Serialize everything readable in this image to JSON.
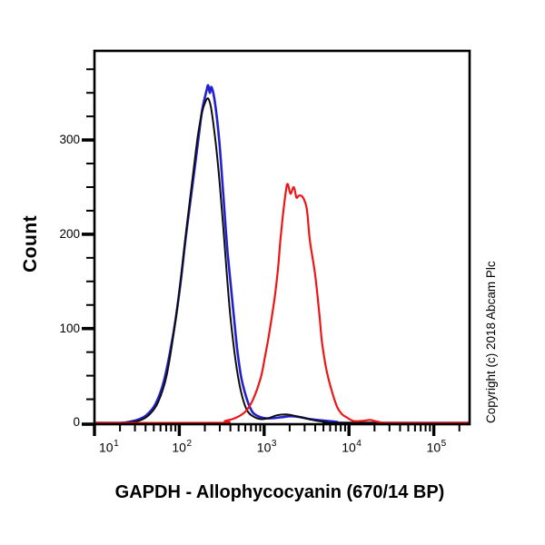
{
  "figure": {
    "y_axis_title": "Count",
    "x_axis_title": "GAPDH - Allophycocyanin (670/14 BP)",
    "copyright": "Copyright (c) 2018 Abcam Plc"
  },
  "chart_data": {
    "type": "line",
    "subtype": "flow-cytometry-histogram-overlay",
    "title": "",
    "xlabel": "GAPDH - Allophycocyanin (670/14 BP)",
    "ylabel": "Count",
    "legend": "none",
    "grid": false,
    "x_axis": {
      "scale": "log10",
      "range_log10": [
        1.0,
        5.42
      ],
      "major_ticks": [
        {
          "base": "10",
          "exp": "1",
          "log": 1
        },
        {
          "base": "10",
          "exp": "2",
          "log": 2
        },
        {
          "base": "10",
          "exp": "3",
          "log": 3
        },
        {
          "base": "10",
          "exp": "4",
          "log": 4
        },
        {
          "base": "10",
          "exp": "5",
          "log": 5
        }
      ],
      "minor_multiples": [
        2,
        3,
        4,
        5,
        6,
        7,
        8,
        9
      ]
    },
    "y_axis": {
      "range": [
        0,
        394
      ],
      "major_ticks": [
        0,
        100,
        200,
        300
      ],
      "minor_tick_step": 25,
      "minor_tick_max": 375
    },
    "colors": {
      "blue_curve": "#2121cf",
      "black_curve": "#0d0d0d",
      "red_curve": "#ed1515",
      "frame": "#000000"
    },
    "series": [
      {
        "name": "blue-curve",
        "color_key": "blue_curve",
        "stroke_width": 2.6,
        "points_log10x_count": [
          [
            0.82,
            0
          ],
          [
            1.29,
            0
          ],
          [
            1.4,
            1
          ],
          [
            1.5,
            3
          ],
          [
            1.61,
            8
          ],
          [
            1.72,
            20
          ],
          [
            1.82,
            45
          ],
          [
            1.93,
            95
          ],
          [
            2.01,
            145
          ],
          [
            2.08,
            200
          ],
          [
            2.16,
            255
          ],
          [
            2.23,
            305
          ],
          [
            2.27,
            332
          ],
          [
            2.32,
            352
          ],
          [
            2.34,
            358
          ],
          [
            2.36,
            350
          ],
          [
            2.38,
            356
          ],
          [
            2.42,
            340
          ],
          [
            2.47,
            300
          ],
          [
            2.52,
            240
          ],
          [
            2.57,
            180
          ],
          [
            2.63,
            125
          ],
          [
            2.68,
            80
          ],
          [
            2.73,
            48
          ],
          [
            2.79,
            27
          ],
          [
            2.84,
            15
          ],
          [
            2.89,
            9
          ],
          [
            3.0,
            5
          ],
          [
            3.11,
            5
          ],
          [
            3.21,
            6
          ],
          [
            3.32,
            7
          ],
          [
            3.43,
            6
          ],
          [
            3.53,
            4
          ],
          [
            3.64,
            3
          ],
          [
            3.75,
            2
          ],
          [
            3.86,
            1
          ],
          [
            3.96,
            0
          ],
          [
            5.42,
            0
          ]
        ]
      },
      {
        "name": "black-curve",
        "color_key": "black_curve",
        "stroke_width": 2.0,
        "points_log10x_count": [
          [
            0.82,
            0
          ],
          [
            1.32,
            0
          ],
          [
            1.45,
            1
          ],
          [
            1.55,
            3
          ],
          [
            1.65,
            9
          ],
          [
            1.75,
            22
          ],
          [
            1.85,
            50
          ],
          [
            1.95,
            105
          ],
          [
            2.02,
            155
          ],
          [
            2.09,
            210
          ],
          [
            2.16,
            262
          ],
          [
            2.22,
            305
          ],
          [
            2.27,
            330
          ],
          [
            2.31,
            341
          ],
          [
            2.34,
            344
          ],
          [
            2.37,
            336
          ],
          [
            2.4,
            318
          ],
          [
            2.44,
            288
          ],
          [
            2.48,
            250
          ],
          [
            2.52,
            205
          ],
          [
            2.56,
            158
          ],
          [
            2.6,
            115
          ],
          [
            2.65,
            75
          ],
          [
            2.7,
            45
          ],
          [
            2.75,
            25
          ],
          [
            2.8,
            13
          ],
          [
            2.85,
            8
          ],
          [
            2.95,
            4
          ],
          [
            3.05,
            5
          ],
          [
            3.15,
            8
          ],
          [
            3.25,
            9
          ],
          [
            3.33,
            8
          ],
          [
            3.43,
            6
          ],
          [
            3.53,
            4
          ],
          [
            3.63,
            2
          ],
          [
            3.73,
            1
          ],
          [
            3.85,
            0
          ],
          [
            5.42,
            0
          ]
        ]
      },
      {
        "name": "red-curve",
        "color_key": "red_curve",
        "stroke_width": 2.2,
        "points_log10x_count": [
          [
            0.82,
            0
          ],
          [
            2.45,
            0
          ],
          [
            2.54,
            2
          ],
          [
            2.66,
            5
          ],
          [
            2.78,
            12
          ],
          [
            2.87,
            25
          ],
          [
            2.96,
            48
          ],
          [
            3.01,
            70
          ],
          [
            3.06,
            95
          ],
          [
            3.12,
            130
          ],
          [
            3.15,
            152
          ],
          [
            3.17,
            170
          ],
          [
            3.19,
            192
          ],
          [
            3.22,
            219
          ],
          [
            3.26,
            248
          ],
          [
            3.28,
            253
          ],
          [
            3.31,
            243
          ],
          [
            3.35,
            250
          ],
          [
            3.38,
            239
          ],
          [
            3.41,
            241
          ],
          [
            3.45,
            240
          ],
          [
            3.49,
            232
          ],
          [
            3.51,
            222
          ],
          [
            3.54,
            193
          ],
          [
            3.6,
            158
          ],
          [
            3.65,
            116
          ],
          [
            3.68,
            87
          ],
          [
            3.73,
            58
          ],
          [
            3.79,
            36
          ],
          [
            3.86,
            17
          ],
          [
            3.92,
            9
          ],
          [
            3.97,
            6
          ],
          [
            4.05,
            2
          ],
          [
            4.15,
            2
          ],
          [
            4.25,
            3
          ],
          [
            4.35,
            1
          ],
          [
            4.5,
            0
          ],
          [
            5.42,
            0
          ]
        ]
      }
    ]
  }
}
